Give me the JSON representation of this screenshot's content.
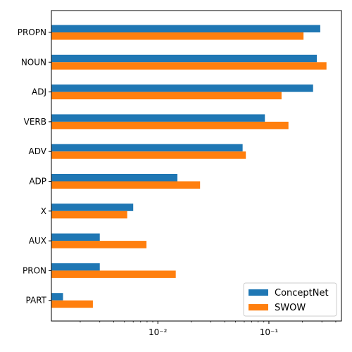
{
  "chart_data": {
    "type": "bar",
    "orientation": "horizontal",
    "x_scale": "log",
    "xlim": [
      0.0011,
      0.45
    ],
    "categories": [
      "PROPN",
      "NOUN",
      "ADJ",
      "VERB",
      "ADV",
      "ADP",
      "X",
      "AUX",
      "PRON",
      "PART"
    ],
    "series": [
      {
        "name": "ConceptNet",
        "color": "#1f77b4",
        "values": [
          0.29,
          0.27,
          0.25,
          0.092,
          0.058,
          0.015,
          0.006,
          0.003,
          0.003,
          0.0014
        ]
      },
      {
        "name": "SWOW",
        "color": "#ff7f0e",
        "values": [
          0.205,
          0.33,
          0.13,
          0.15,
          0.062,
          0.024,
          0.0053,
          0.0079,
          0.0145,
          0.0026
        ]
      }
    ],
    "x_ticks": [
      {
        "value": 0.01,
        "label": "10⁻²"
      },
      {
        "value": 0.1,
        "label": "10⁻¹"
      }
    ],
    "grid": false,
    "legend": "lower-right"
  }
}
